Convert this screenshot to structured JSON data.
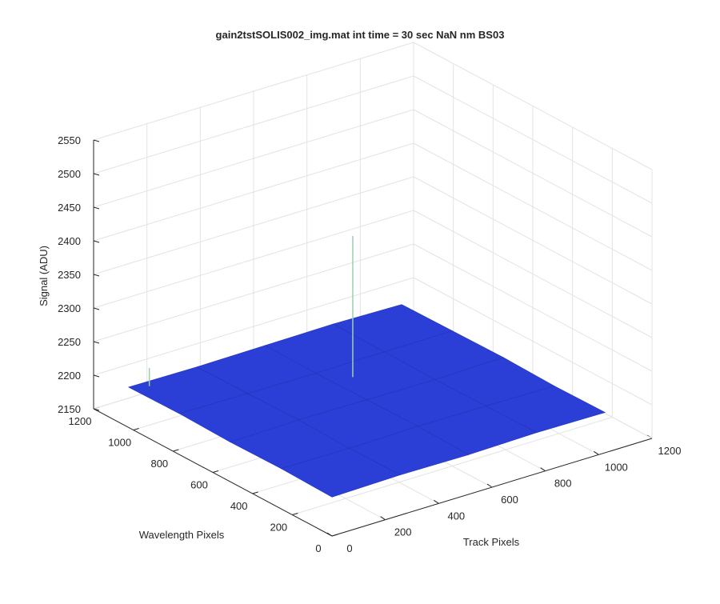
{
  "chart_data": {
    "type": "surface",
    "title": "gain2tstSOLIS002_img.mat int time = 30 sec  NaN nm BS03",
    "x_label": "Track Pixels",
    "y_label": "Wavelength Pixels",
    "z_label": "Signal (ADU)",
    "xlim": [
      0,
      1200
    ],
    "ylim": [
      0,
      1200
    ],
    "zlim": [
      2150,
      2550
    ],
    "xticks": [
      0,
      200,
      400,
      600,
      800,
      1000,
      1200
    ],
    "yticks": [
      0,
      200,
      400,
      600,
      800,
      1000,
      1200
    ],
    "zticks": [
      2150,
      2200,
      2250,
      2300,
      2350,
      2400,
      2450,
      2500,
      2550
    ],
    "grid": true,
    "color": "#2b3fd6",
    "x": [
      0,
      256,
      512,
      768,
      1024
    ],
    "y": [
      0,
      256,
      512,
      768,
      1024
    ],
    "z": [
      [
        2208,
        2210,
        2209,
        2211,
        2210
      ],
      [
        2210,
        2209,
        2211,
        2210,
        2209
      ],
      [
        2209,
        2211,
        2210,
        2209,
        2211
      ],
      [
        2211,
        2210,
        2209,
        2210,
        2210
      ],
      [
        2210,
        2209,
        2210,
        2211,
        2209
      ]
    ],
    "peaks": [
      {
        "x": 586,
        "y": 682,
        "z": 2418
      },
      {
        "x": 60,
        "y": 1000,
        "z": 2235
      }
    ]
  }
}
